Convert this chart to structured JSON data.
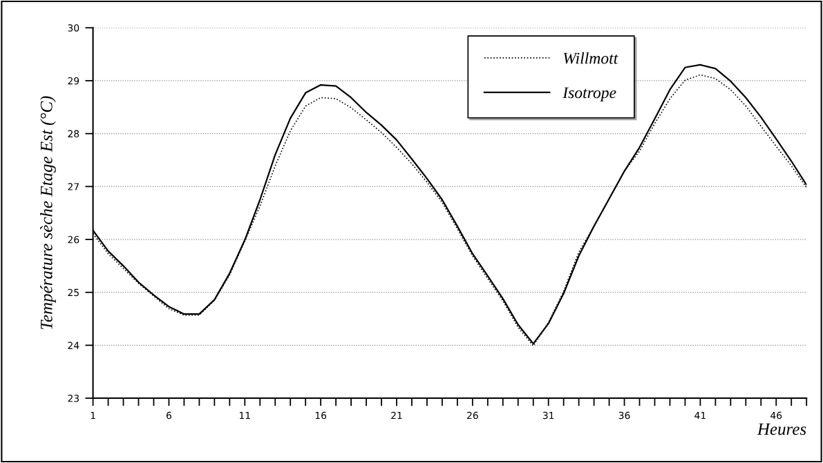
{
  "chart_data": {
    "type": "line",
    "ylabel": "Température sèche Etage Est (°C)",
    "xlabel": "Heures",
    "x": [
      1,
      2,
      3,
      4,
      5,
      6,
      7,
      8,
      9,
      10,
      11,
      12,
      13,
      14,
      15,
      16,
      17,
      18,
      19,
      20,
      21,
      22,
      23,
      24,
      25,
      26,
      27,
      28,
      29,
      30,
      31,
      32,
      33,
      34,
      35,
      36,
      37,
      38,
      39,
      40,
      41,
      42,
      43,
      44,
      45,
      46,
      47,
      48
    ],
    "series": [
      {
        "name": "Willmott",
        "color": "#000000",
        "line_style": "dotted",
        "values": [
          26.11,
          25.73,
          25.45,
          25.17,
          24.93,
          24.69,
          24.57,
          24.57,
          24.85,
          25.33,
          25.97,
          26.63,
          27.39,
          28.05,
          28.52,
          28.68,
          28.66,
          28.49,
          28.26,
          28.02,
          27.74,
          27.43,
          27.08,
          26.7,
          26.2,
          25.69,
          25.26,
          24.84,
          24.34,
          23.99,
          24.43,
          25.02,
          25.76,
          26.25,
          26.77,
          27.29,
          27.67,
          28.19,
          28.66,
          29.01,
          29.11,
          29.04,
          28.83,
          28.52,
          28.14,
          27.76,
          27.39,
          26.98
        ]
      },
      {
        "name": "Isotrope",
        "color": "#000000",
        "line_style": "solid",
        "values": [
          26.17,
          25.78,
          25.5,
          25.19,
          24.95,
          24.73,
          24.59,
          24.59,
          24.86,
          25.36,
          25.99,
          26.75,
          27.6,
          28.29,
          28.77,
          28.92,
          28.9,
          28.68,
          28.4,
          28.16,
          27.88,
          27.52,
          27.15,
          26.75,
          26.25,
          25.73,
          25.31,
          24.88,
          24.39,
          24.03,
          24.41,
          24.98,
          25.69,
          26.25,
          26.77,
          27.29,
          27.74,
          28.28,
          28.83,
          29.25,
          29.3,
          29.23,
          28.99,
          28.68,
          28.31,
          27.9,
          27.48,
          27.03
        ]
      }
    ],
    "xlim": [
      1,
      48
    ],
    "xticks": [
      1,
      {
        "value": 2,
        "label": null
      },
      {
        "value": 3,
        "label": null
      },
      {
        "value": 4,
        "label": null
      },
      {
        "value": 5,
        "label": null
      },
      6,
      {
        "value": 7,
        "label": null
      },
      {
        "value": 8,
        "label": null
      },
      {
        "value": 9,
        "label": null
      },
      {
        "value": 10,
        "label": null
      },
      11,
      {
        "value": 12,
        "label": null
      },
      {
        "value": 13,
        "label": null
      },
      {
        "value": 14,
        "label": null
      },
      {
        "value": 15,
        "label": null
      },
      16,
      {
        "value": 17,
        "label": null
      },
      {
        "value": 18,
        "label": null
      },
      {
        "value": 19,
        "label": null
      },
      {
        "value": 20,
        "label": null
      },
      21,
      {
        "value": 22,
        "label": null
      },
      {
        "value": 23,
        "label": null
      },
      {
        "value": 24,
        "label": null
      },
      {
        "value": 25,
        "label": null
      },
      26,
      {
        "value": 27,
        "label": null
      },
      {
        "value": 28,
        "label": null
      },
      {
        "value": 29,
        "label": null
      },
      {
        "value": 30,
        "label": null
      },
      31,
      {
        "value": 32,
        "label": null
      },
      {
        "value": 33,
        "label": null
      },
      {
        "value": 34,
        "label": null
      },
      {
        "value": 35,
        "label": null
      },
      36,
      {
        "value": 37,
        "label": null
      },
      {
        "value": 38,
        "label": null
      },
      {
        "value": 39,
        "label": null
      },
      {
        "value": 40,
        "label": null
      },
      41,
      {
        "value": 42,
        "label": null
      },
      {
        "value": 43,
        "label": null
      },
      {
        "value": 44,
        "label": null
      },
      {
        "value": 45,
        "label": null
      },
      46,
      {
        "value": 47,
        "label": null
      },
      {
        "value": 48,
        "label": null
      }
    ],
    "ylim": [
      23,
      30
    ],
    "yticks": [
      23,
      24,
      25,
      26,
      27,
      28,
      29,
      30
    ],
    "grid": "y",
    "legend": "top right",
    "marker": "none"
  }
}
